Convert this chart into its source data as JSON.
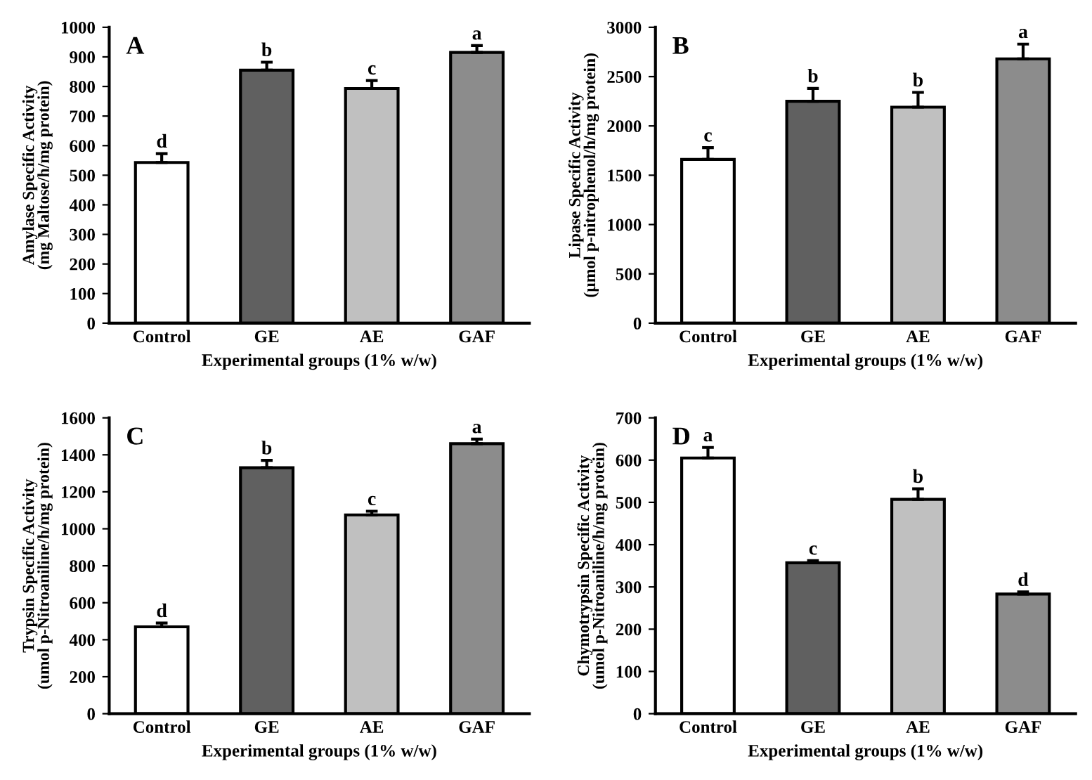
{
  "chart_data": [
    {
      "type": "bar",
      "categories": [
        "Control",
        "GE",
        "AE",
        "GAF"
      ],
      "values": [
        543,
        855,
        793,
        915
      ],
      "errors": [
        [
          543,
          573
        ],
        [
          855,
          882
        ],
        [
          793,
          820
        ],
        [
          915,
          938
        ]
      ],
      "colors": [
        "#ffffff",
        "#606060",
        "#c0c0c0",
        "#8c8c8c"
      ],
      "ylim": [
        0,
        1000
      ],
      "yticks": [
        0,
        100,
        200,
        300,
        400,
        500,
        600,
        700,
        800,
        900,
        1000
      ],
      "ylabel": "Amylase Specific Activity\n(mg Maltose/h/mg protein)",
      "xlabel": "Experimental groups (1% w/w)",
      "grid": false,
      "annotations": [
        "A",
        {
          "text": "d",
          "x": "Control",
          "y": 573
        },
        {
          "text": "b",
          "x": "GE",
          "y": 882
        },
        {
          "text": "c",
          "x": "AE",
          "y": 820
        },
        {
          "text": "a",
          "x": "GAF",
          "y": 938
        }
      ]
    },
    {
      "type": "bar",
      "categories": [
        "Control",
        "GE",
        "AE",
        "GAF"
      ],
      "values": [
        1660,
        2250,
        2190,
        2680
      ],
      "errors": [
        [
          1660,
          1780
        ],
        [
          2250,
          2380
        ],
        [
          2190,
          2340
        ],
        [
          2680,
          2830
        ]
      ],
      "colors": [
        "#ffffff",
        "#606060",
        "#c0c0c0",
        "#8c8c8c"
      ],
      "ylim": [
        0,
        3000
      ],
      "yticks": [
        0,
        500,
        1000,
        1500,
        2000,
        2500,
        3000
      ],
      "ylabel": "Lipase Specific Activity\n(µmol p-nitrophenol/h/mg protein)",
      "xlabel": "Experimental groups (1% w/w)",
      "grid": false,
      "annotations": [
        "B",
        {
          "text": "c",
          "x": "Control",
          "y": 1780
        },
        {
          "text": "b",
          "x": "GE",
          "y": 2380
        },
        {
          "text": "b",
          "x": "AE",
          "y": 2340
        },
        {
          "text": "a",
          "x": "GAF",
          "y": 2830
        }
      ]
    },
    {
      "type": "bar",
      "categories": [
        "Control",
        "GE",
        "AE",
        "GAF"
      ],
      "values": [
        470,
        1330,
        1075,
        1460
      ],
      "errors": [
        [
          470,
          490
        ],
        [
          1330,
          1370
        ],
        [
          1075,
          1095
        ],
        [
          1460,
          1485
        ]
      ],
      "colors": [
        "#ffffff",
        "#606060",
        "#c0c0c0",
        "#8c8c8c"
      ],
      "ylim": [
        0,
        1600
      ],
      "yticks": [
        0,
        200,
        400,
        600,
        800,
        1000,
        1200,
        1400,
        1600
      ],
      "ylabel": "Trypsin Specific Activity\n(umol p-Nitroaniline/h/mg protein)",
      "xlabel": "Experimental groups (1% w/w)",
      "grid": false,
      "annotations": [
        "C",
        {
          "text": "d",
          "x": "Control",
          "y": 490
        },
        {
          "text": "b",
          "x": "GE",
          "y": 1370
        },
        {
          "text": "c",
          "x": "AE",
          "y": 1095
        },
        {
          "text": "a",
          "x": "GAF",
          "y": 1485
        }
      ]
    },
    {
      "type": "bar",
      "categories": [
        "Control",
        "GE",
        "AE",
        "GAF"
      ],
      "values": [
        605,
        357,
        507,
        283
      ],
      "errors": [
        [
          605,
          630
        ],
        [
          357,
          362
        ],
        [
          507,
          532
        ],
        [
          283,
          288
        ]
      ],
      "colors": [
        "#ffffff",
        "#606060",
        "#c0c0c0",
        "#8c8c8c"
      ],
      "ylim": [
        0,
        700
      ],
      "yticks": [
        0,
        100,
        200,
        300,
        400,
        500,
        600,
        700
      ],
      "ylabel": "Chymotrypsin Specific Activity\n(umol p-Nitroaniline/h/mg protein)",
      "xlabel": "Experimental groups (1% w/w)",
      "grid": false,
      "annotations": [
        "D",
        {
          "text": "a",
          "x": "Control",
          "y": 630
        },
        {
          "text": "c",
          "x": "GE",
          "y": 362
        },
        {
          "text": "b",
          "x": "AE",
          "y": 532
        },
        {
          "text": "d",
          "x": "GAF",
          "y": 288
        }
      ]
    }
  ]
}
